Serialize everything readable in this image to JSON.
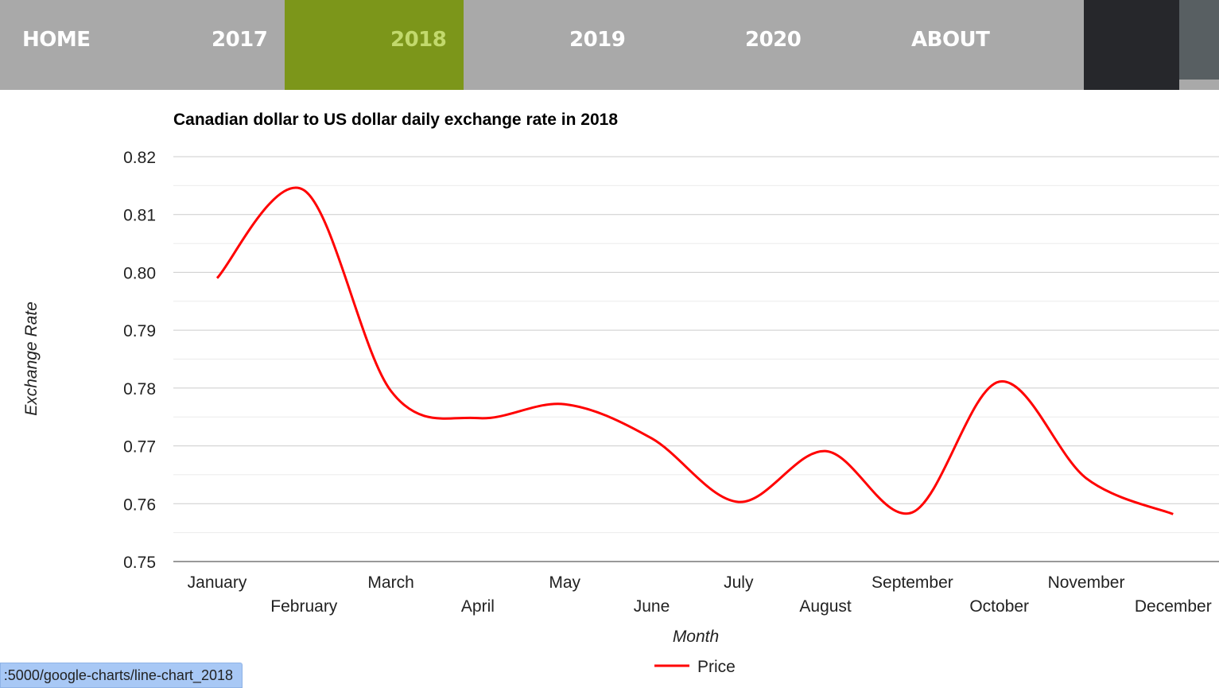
{
  "nav": {
    "items": [
      {
        "label": "HOME",
        "active": false
      },
      {
        "label": "2017",
        "active": false
      },
      {
        "label": "2018",
        "active": true
      },
      {
        "label": "2019",
        "active": false
      },
      {
        "label": "2020",
        "active": false
      },
      {
        "label": "ABOUT",
        "active": false
      }
    ],
    "active_bg": "#7c961a",
    "active_text": "#c2d96c"
  },
  "status_bar": {
    "url": ":5000/google-charts/line-chart_2018"
  },
  "chart_data": {
    "type": "line",
    "title": "Canadian dollar to US dollar daily exchange rate in 2018",
    "xlabel": "Month",
    "ylabel": "Exchange Rate",
    "categories": [
      "January",
      "February",
      "March",
      "April",
      "May",
      "June",
      "July",
      "August",
      "September",
      "October",
      "November",
      "December"
    ],
    "series": [
      {
        "name": "Price",
        "color": "#ff0000",
        "values": [
          0.799,
          0.8142,
          0.7795,
          0.7748,
          0.7772,
          0.7713,
          0.7603,
          0.7691,
          0.7585,
          0.7811,
          0.7644,
          0.7582
        ]
      }
    ],
    "ylim": [
      0.75,
      0.82
    ],
    "yticks": [
      "0.82",
      "0.81",
      "0.80",
      "0.79",
      "0.78",
      "0.77",
      "0.76",
      "0.75"
    ],
    "grid": true,
    "minor_grid": true,
    "legend": "bottom",
    "curve": "smooth"
  }
}
